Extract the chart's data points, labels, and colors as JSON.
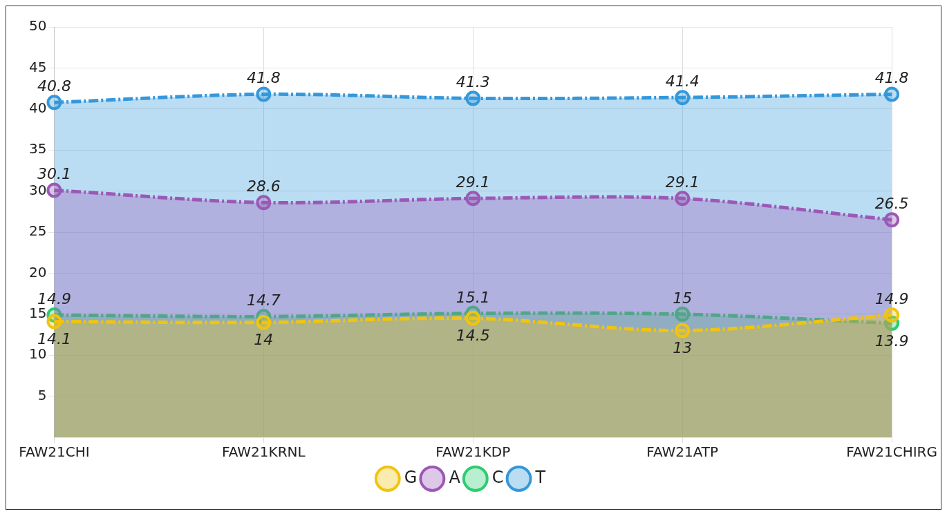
{
  "chart_data": {
    "type": "area",
    "categories": [
      "FAW21CHI",
      "FAW21KRNL",
      "FAW21KDP",
      "FAW21ATP",
      "FAW21CHIRG"
    ],
    "series": [
      {
        "name": "G",
        "color": "#f1c40f",
        "values": [
          14.1,
          14,
          14.5,
          13,
          14.9
        ]
      },
      {
        "name": "A",
        "color": "#9b59b6",
        "values": [
          30.1,
          28.6,
          29.1,
          29.1,
          26.5
        ]
      },
      {
        "name": "C",
        "color": "#2ecc71",
        "values": [
          14.9,
          14.7,
          15.1,
          15,
          13.9
        ]
      },
      {
        "name": "T",
        "color": "#3498db",
        "values": [
          40.8,
          41.8,
          41.3,
          41.4,
          41.8
        ]
      }
    ],
    "ylim": [
      0,
      50
    ],
    "yticks": [
      5,
      10,
      15,
      20,
      25,
      30,
      35,
      40,
      45,
      50
    ],
    "grid": true,
    "legend": "bottom",
    "data_labels": true,
    "marker": "circle",
    "line_style": "dashed"
  }
}
